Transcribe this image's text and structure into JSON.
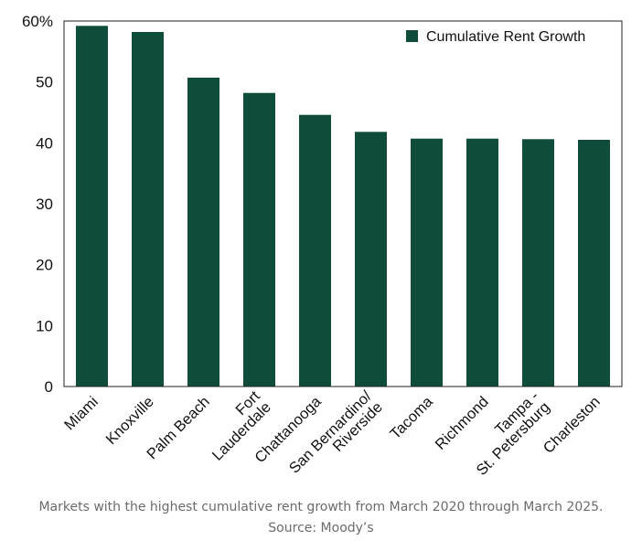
{
  "chart_data": {
    "type": "bar",
    "categories": [
      [
        "Miami"
      ],
      [
        "Knoxville"
      ],
      [
        "Palm Beach"
      ],
      [
        "Fort",
        "Lauderdale"
      ],
      [
        "Chattanooga"
      ],
      [
        "San Bernardino/",
        "Riverside"
      ],
      [
        "Tacoma"
      ],
      [
        "Richmond"
      ],
      [
        "Tampa -",
        "St. Petersburg"
      ],
      [
        "Charleston"
      ]
    ],
    "series": [
      {
        "name": "Cumulative Rent Growth",
        "values": [
          59.2,
          58.2,
          50.7,
          48.2,
          44.6,
          41.8,
          40.7,
          40.7,
          40.6,
          40.5
        ]
      }
    ],
    "y_ticks": [
      "0",
      "10",
      "20",
      "30",
      "40",
      "50",
      "60%"
    ],
    "ylim": [
      0,
      60
    ],
    "grid": false,
    "legend_position": "top-right",
    "bar_color": "#0f4d3a"
  },
  "caption": {
    "line1": "Markets with the highest cumulative rent growth from March 2020 through March 2025.",
    "line2": "Source: Moody’s"
  }
}
